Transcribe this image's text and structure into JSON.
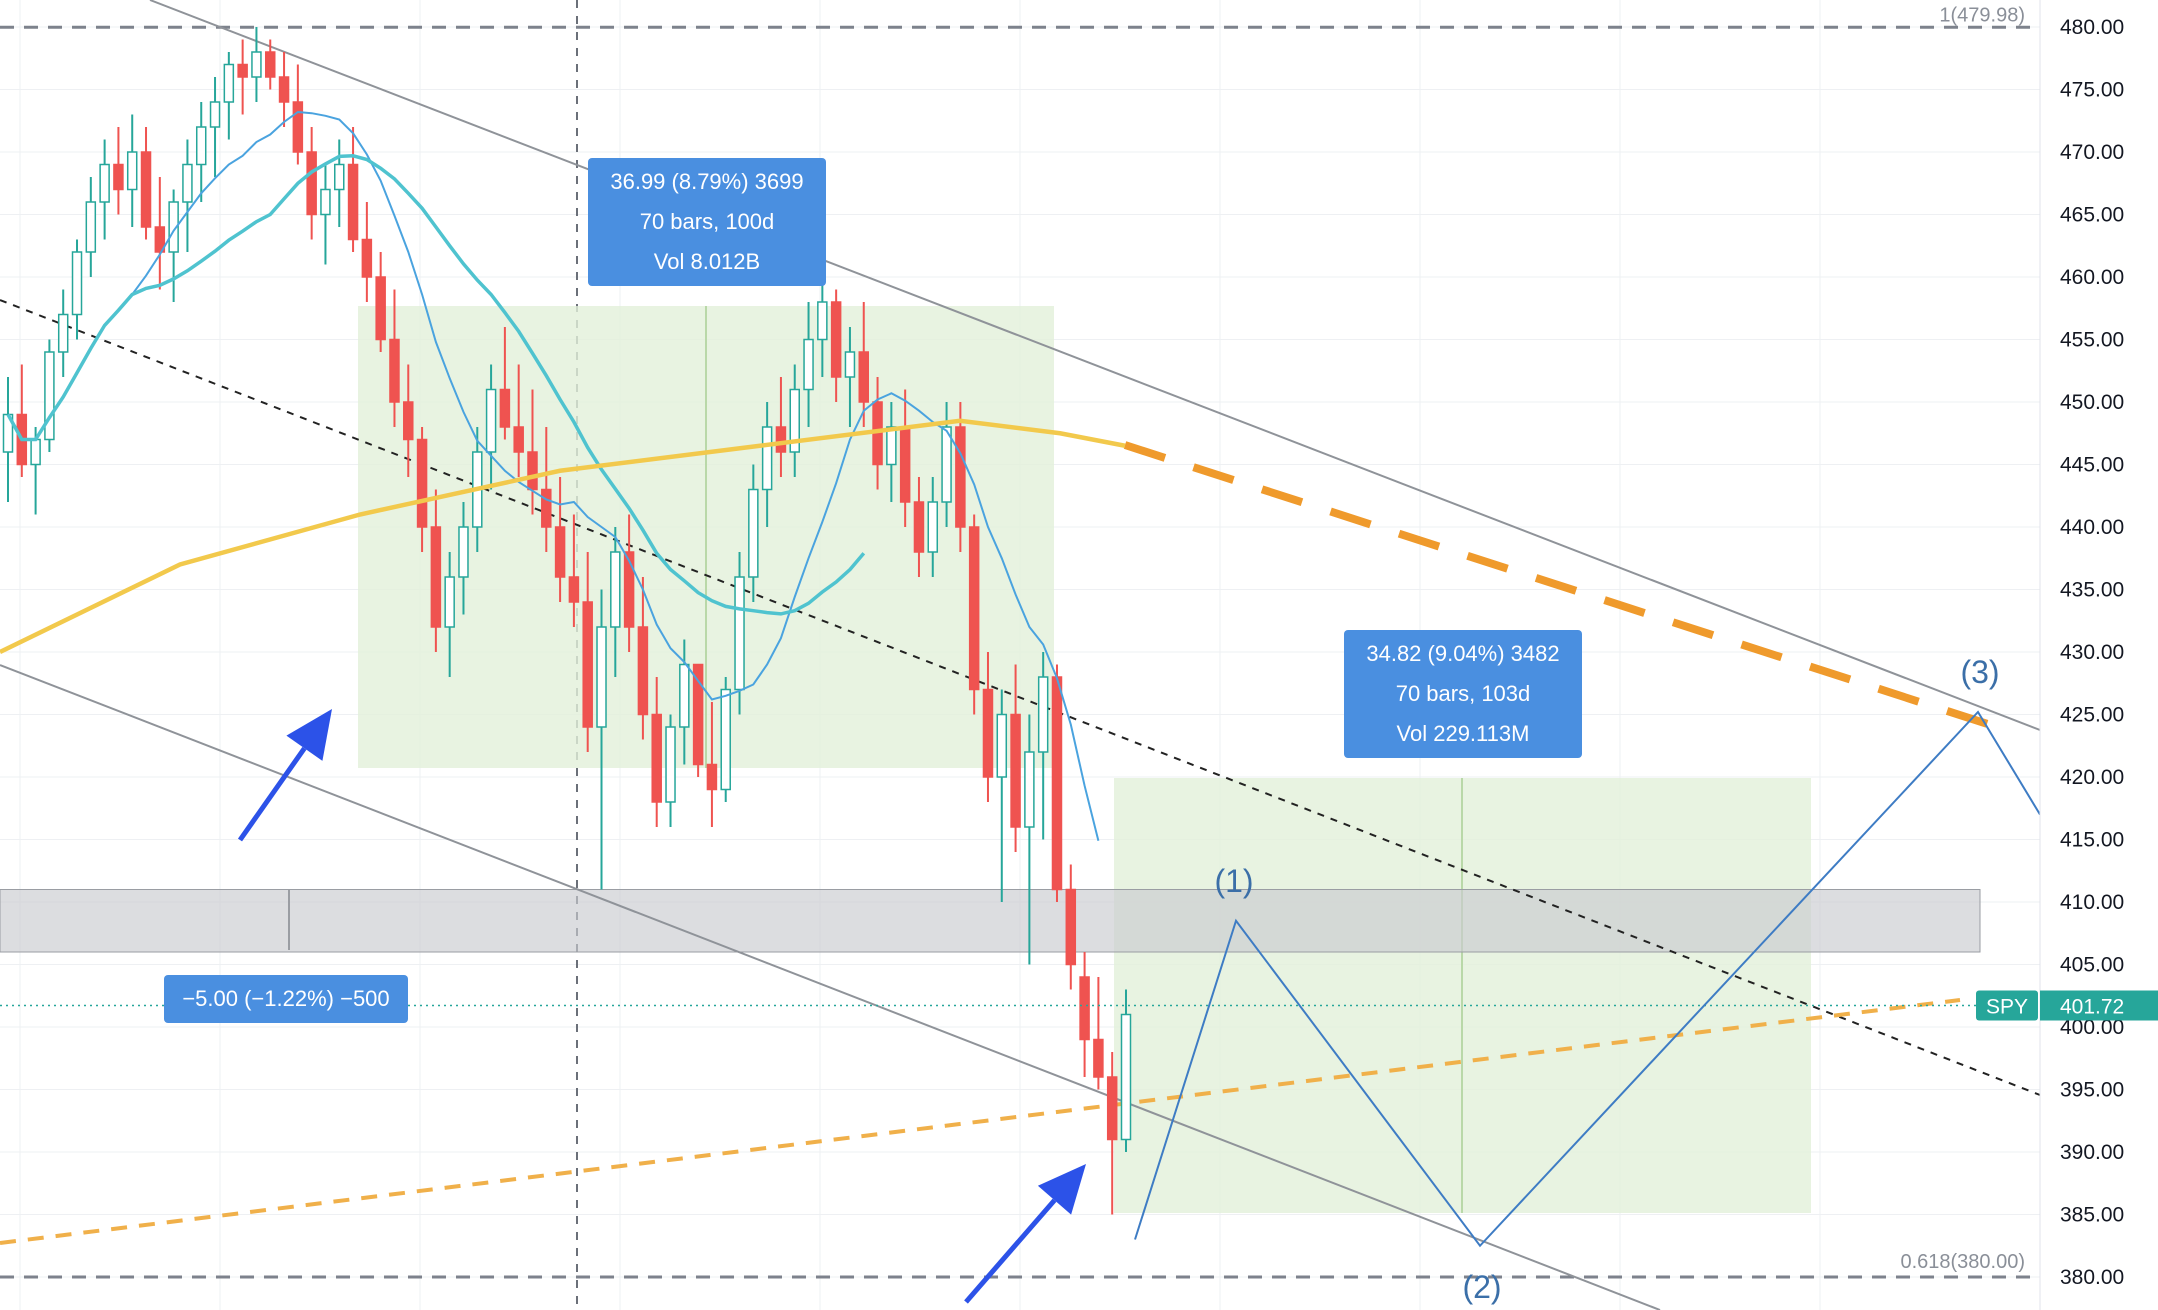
{
  "chart_data": {
    "type": "candlestick",
    "symbol": "SPY",
    "last_price": "401.72",
    "y_ticks": [
      "480.00",
      "475.00",
      "470.00",
      "465.00",
      "460.00",
      "455.00",
      "450.00",
      "445.00",
      "440.00",
      "435.00",
      "430.00",
      "425.00",
      "420.00",
      "415.00",
      "410.00",
      "405.00",
      "400.00",
      "395.00",
      "390.00",
      "385.00",
      "380.00"
    ],
    "ylim": [
      380,
      480
    ],
    "fib_levels": [
      {
        "label": "1(479.98)",
        "price": 479.98
      },
      {
        "label": "0.618(380.00)",
        "price": 380.0
      }
    ],
    "measurements": [
      {
        "line1": "36.99 (8.79%) 3699",
        "line2": "70 bars, 100d",
        "line3": "Vol 8.012B"
      },
      {
        "line1": "34.82 (9.04%) 3482",
        "line2": "70 bars, 103d",
        "line3": "Vol 229.113M"
      },
      {
        "line1": "−5.00 (−1.22%) −500"
      }
    ],
    "wave_labels": [
      "(1)",
      "(2)",
      "(3)"
    ],
    "wave_path_prices": [
      383,
      408.5,
      382.5,
      425.2,
      417
    ],
    "support_zone": [
      406,
      411
    ],
    "candles": [
      [
        446,
        452,
        442,
        449
      ],
      [
        449,
        453,
        444,
        445
      ],
      [
        445,
        448,
        441,
        447
      ],
      [
        447,
        455,
        446,
        454
      ],
      [
        454,
        459,
        452,
        457
      ],
      [
        457,
        463,
        455,
        462
      ],
      [
        462,
        468,
        460,
        466
      ],
      [
        466,
        471,
        463,
        469
      ],
      [
        469,
        472,
        465,
        467
      ],
      [
        467,
        473,
        464,
        470
      ],
      [
        470,
        472,
        463,
        464
      ],
      [
        464,
        468,
        459,
        462
      ],
      [
        462,
        467,
        458,
        466
      ],
      [
        466,
        471,
        462,
        469
      ],
      [
        469,
        474,
        466,
        472
      ],
      [
        472,
        476,
        468,
        474
      ],
      [
        474,
        478,
        471,
        477
      ],
      [
        477,
        479,
        473,
        476
      ],
      [
        476,
        480,
        474,
        478
      ],
      [
        478,
        479,
        475,
        476
      ],
      [
        476,
        478,
        472,
        474
      ],
      [
        474,
        477,
        469,
        470
      ],
      [
        470,
        472,
        463,
        465
      ],
      [
        465,
        469,
        461,
        467
      ],
      [
        467,
        471,
        464,
        469
      ],
      [
        469,
        472,
        462,
        463
      ],
      [
        463,
        466,
        458,
        460
      ],
      [
        460,
        462,
        454,
        455
      ],
      [
        455,
        459,
        448,
        450
      ],
      [
        450,
        453,
        444,
        447
      ],
      [
        447,
        448,
        438,
        440
      ],
      [
        440,
        443,
        430,
        432
      ],
      [
        432,
        438,
        428,
        436
      ],
      [
        436,
        442,
        433,
        440
      ],
      [
        440,
        448,
        438,
        446
      ],
      [
        446,
        453,
        443,
        451
      ],
      [
        451,
        456,
        447,
        448
      ],
      [
        448,
        453,
        444,
        446
      ],
      [
        446,
        451,
        441,
        443
      ],
      [
        443,
        448,
        438,
        440
      ],
      [
        440,
        444,
        434,
        436
      ],
      [
        436,
        441,
        432,
        434
      ],
      [
        434,
        438,
        422,
        424
      ],
      [
        424,
        435,
        411,
        432
      ],
      [
        432,
        440,
        428,
        438
      ],
      [
        438,
        441,
        430,
        432
      ],
      [
        432,
        436,
        423,
        425
      ],
      [
        425,
        428,
        416,
        418
      ],
      [
        418,
        425,
        416,
        424
      ],
      [
        424,
        431,
        421,
        429
      ],
      [
        429,
        428,
        420,
        421
      ],
      [
        421,
        426,
        416,
        419
      ],
      [
        419,
        428,
        418,
        427
      ],
      [
        427,
        438,
        425,
        436
      ],
      [
        436,
        445,
        434,
        443
      ],
      [
        443,
        450,
        440,
        448
      ],
      [
        448,
        452,
        444,
        446
      ],
      [
        446,
        453,
        444,
        451
      ],
      [
        451,
        458,
        448,
        455
      ],
      [
        455,
        460,
        452,
        458
      ],
      [
        458,
        459,
        450,
        452
      ],
      [
        452,
        456,
        448,
        454
      ],
      [
        454,
        458,
        448,
        450
      ],
      [
        450,
        452,
        443,
        445
      ],
      [
        445,
        450,
        442,
        448
      ],
      [
        448,
        451,
        440,
        442
      ],
      [
        442,
        444,
        436,
        438
      ],
      [
        438,
        444,
        436,
        442
      ],
      [
        442,
        450,
        440,
        448
      ],
      [
        448,
        450,
        438,
        440
      ],
      [
        440,
        441,
        425,
        427
      ],
      [
        427,
        430,
        418,
        420
      ],
      [
        420,
        427,
        410,
        425
      ],
      [
        425,
        429,
        414,
        416
      ],
      [
        416,
        425,
        405,
        422
      ],
      [
        422,
        430,
        415,
        428
      ],
      [
        428,
        429,
        410,
        411
      ],
      [
        411,
        413,
        403,
        405
      ],
      [
        404,
        406,
        396,
        399
      ],
      [
        399,
        404,
        395,
        396
      ],
      [
        396,
        398,
        385,
        391
      ],
      [
        391,
        403,
        390,
        401
      ]
    ]
  }
}
